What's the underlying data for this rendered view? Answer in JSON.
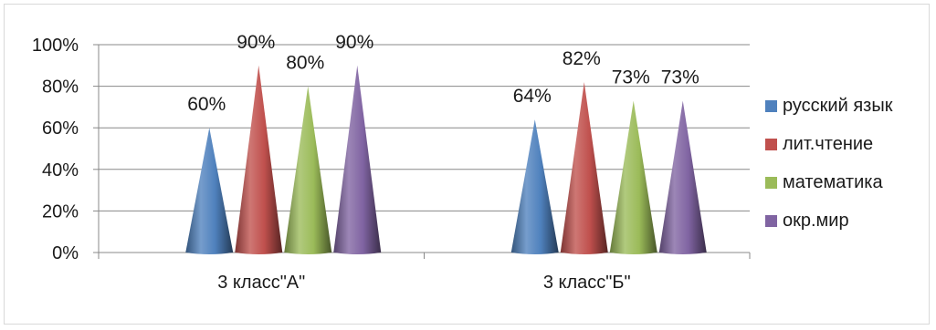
{
  "chart_data": {
    "type": "bar",
    "style": "3d-cone",
    "categories": [
      "3 класс\"А\"",
      "3 класс\"Б\""
    ],
    "series": [
      {
        "name": "русский язык",
        "values": [
          60,
          64
        ],
        "labels": [
          "60%",
          "64%"
        ],
        "color": "#4f81bd"
      },
      {
        "name": "лит.чтение",
        "values": [
          90,
          82
        ],
        "labels": [
          "90%",
          "82%"
        ],
        "color": "#c0504d"
      },
      {
        "name": "математика",
        "values": [
          80,
          73
        ],
        "labels": [
          "80%",
          "73%"
        ],
        "color": "#9bbb59"
      },
      {
        "name": "окр.мир",
        "values": [
          90,
          73
        ],
        "labels": [
          "90%",
          "73%"
        ],
        "color": "#8064a2"
      }
    ],
    "y_ticks": [
      "0%",
      "20%",
      "40%",
      "60%",
      "80%",
      "100%"
    ],
    "ylim": [
      0,
      100
    ],
    "grid": true,
    "legend": "right"
  }
}
